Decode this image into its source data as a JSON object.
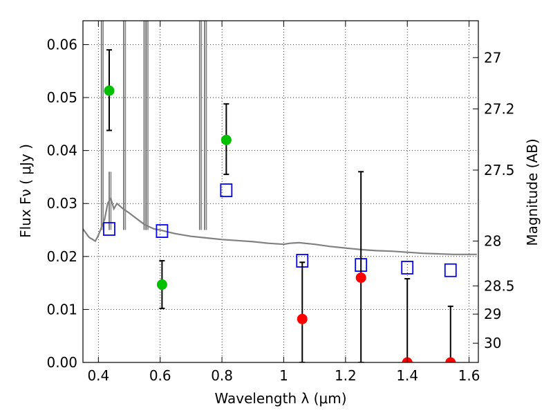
{
  "chart_data": {
    "type": "scatter",
    "xlabel": "Wavelength  λ (μm)",
    "ylabel": "Flux  Fν  ( μJy )",
    "y2label": "Magnitude (AB)",
    "xlim": [
      0.35,
      1.63
    ],
    "ylim": [
      0.0,
      0.0645
    ],
    "grid": true,
    "x_ticks": [
      {
        "value": 0.4,
        "label": "0.4"
      },
      {
        "value": 0.6,
        "label": "0.6"
      },
      {
        "value": 0.8,
        "label": "0.8"
      },
      {
        "value": 1.0,
        "label": "1"
      },
      {
        "value": 1.2,
        "label": "1.2"
      },
      {
        "value": 1.4,
        "label": "1.4"
      },
      {
        "value": 1.6,
        "label": "1.6"
      }
    ],
    "y_ticks": [
      {
        "value": 0.0,
        "label": "0.00"
      },
      {
        "value": 0.01,
        "label": "0.01"
      },
      {
        "value": 0.02,
        "label": "0.02"
      },
      {
        "value": 0.03,
        "label": "0.03"
      },
      {
        "value": 0.04,
        "label": "0.04"
      },
      {
        "value": 0.05,
        "label": "0.05"
      },
      {
        "value": 0.06,
        "label": "0.06"
      }
    ],
    "y2_ticks": [
      {
        "value": 27.0,
        "label": "27"
      },
      {
        "value": 27.2,
        "label": "27.2"
      },
      {
        "value": 27.5,
        "label": "27.5"
      },
      {
        "value": 28.0,
        "label": "28"
      },
      {
        "value": 28.5,
        "label": "28.5"
      },
      {
        "value": 29.0,
        "label": "29"
      },
      {
        "value": 30.0,
        "label": "30"
      }
    ],
    "series": [
      {
        "kind": "model-sed",
        "color": "#808080",
        "x": [
          0.35,
          0.37,
          0.39,
          0.4,
          0.41,
          0.42,
          0.43,
          0.44,
          0.45,
          0.46,
          0.48,
          0.5,
          0.52,
          0.55,
          0.58,
          0.6,
          0.62,
          0.65,
          0.68,
          0.7,
          0.75,
          0.8,
          0.85,
          0.9,
          0.95,
          1.0,
          1.02,
          1.05,
          1.1,
          1.15,
          1.2,
          1.25,
          1.3,
          1.35,
          1.4,
          1.45,
          1.5,
          1.55,
          1.6,
          1.625
        ],
        "y": [
          0.0252,
          0.0236,
          0.0229,
          0.024,
          0.0255,
          0.027,
          0.03,
          0.031,
          0.029,
          0.03,
          0.029,
          0.0282,
          0.0273,
          0.026,
          0.0252,
          0.025,
          0.0247,
          0.0243,
          0.024,
          0.0238,
          0.0235,
          0.0232,
          0.023,
          0.0228,
          0.0225,
          0.0223,
          0.0225,
          0.0226,
          0.0223,
          0.0219,
          0.0216,
          0.0213,
          0.0211,
          0.021,
          0.0208,
          0.0206,
          0.0205,
          0.0204,
          0.0204,
          0.0204
        ]
      },
      {
        "kind": "model-emission-lines",
        "color": "#808080",
        "x": [
          0.41,
          0.435,
          0.482,
          0.548,
          0.555,
          0.728,
          0.744
        ],
        "y": [
          0.0645,
          0.036,
          0.0645,
          0.0645,
          0.0645,
          0.0645,
          0.0645
        ]
      },
      {
        "kind": "model-photometry",
        "marker": "open-square",
        "color": "#0000ff",
        "x": [
          0.435,
          0.606,
          0.814,
          1.06,
          1.25,
          1.4,
          1.54
        ],
        "y": [
          0.0252,
          0.0248,
          0.0325,
          0.0192,
          0.0184,
          0.0179,
          0.0174
        ]
      },
      {
        "kind": "detections",
        "marker": "filled-circle",
        "color": "#00c000",
        "x": [
          0.435,
          0.606,
          0.814
        ],
        "y": [
          0.0513,
          0.0147,
          0.042
        ],
        "err_low": [
          0.0438,
          0.0102,
          0.0355
        ],
        "err_high": [
          0.059,
          0.0192,
          0.0488
        ]
      },
      {
        "kind": "non-detections",
        "marker": "filled-circle",
        "color": "#ff0000",
        "x": [
          1.06,
          1.25,
          1.4,
          1.54
        ],
        "y": [
          0.0082,
          0.016,
          0.0,
          0.0
        ],
        "err_low": [
          0.0,
          0.0,
          0.0,
          0.0
        ],
        "err_high": [
          0.0189,
          0.036,
          0.0158,
          0.0106
        ]
      }
    ]
  }
}
